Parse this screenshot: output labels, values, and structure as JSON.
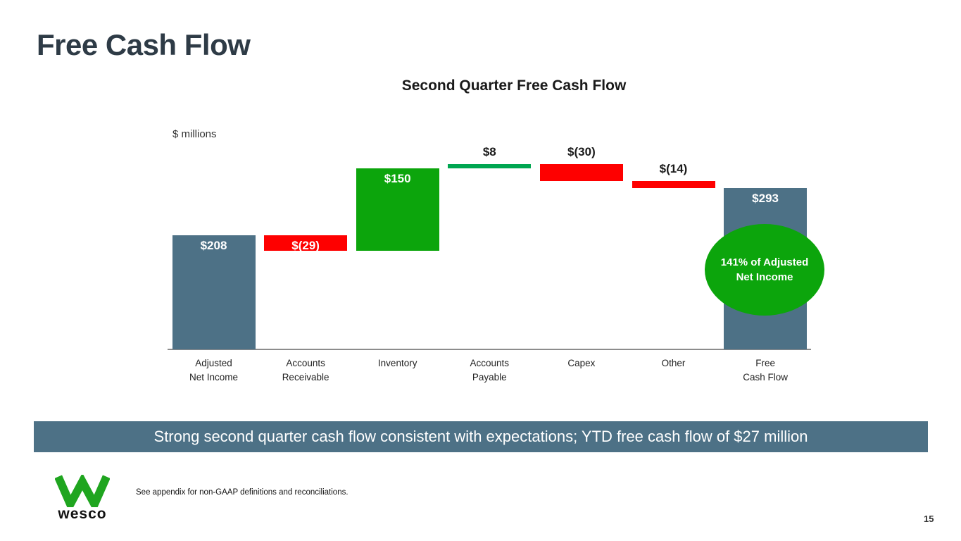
{
  "slide": {
    "title": "Free Cash Flow",
    "banner": "Strong second quarter cash flow consistent with expectations; YTD free cash flow of $27 million",
    "footnote": "See appendix for non-GAAP definitions and reconciliations.",
    "page_number": "15",
    "logo_text": "wesco",
    "colors": {
      "banner_bg": "#4d7186",
      "title_text": "#2e3b46"
    }
  },
  "chart_data": {
    "type": "bar",
    "subtype": "waterfall",
    "title": "Second Quarter Free Cash Flow",
    "units_label": "$ millions",
    "categories": [
      "Adjusted\nNet Income",
      "Accounts\nReceivable",
      "Inventory",
      "Accounts\nPayable",
      "Capex",
      "Other",
      "Free\nCash Flow"
    ],
    "values": [
      208,
      -29,
      150,
      8,
      -30,
      -14,
      293
    ],
    "labels": [
      "$208",
      "$(29)",
      "$150",
      "$8",
      "$(30)",
      "$(14)",
      "$293"
    ],
    "bar_kinds": [
      "total",
      "delta",
      "delta",
      "delta",
      "delta",
      "delta",
      "total"
    ],
    "label_positions": [
      "inside",
      "inside",
      "inside",
      "above",
      "above",
      "above",
      "inside"
    ],
    "bar_colors": [
      "#4d7186",
      "#fe0000",
      "#0ca50c",
      "#00a651",
      "#fe0000",
      "#fe0000",
      "#4d7186"
    ],
    "ylim": [
      0,
      360
    ],
    "grid": false,
    "legend": "none",
    "annotation": {
      "line1": "141% of Adjusted",
      "line2": "Net Income",
      "bg_color": "#0ca50c"
    }
  }
}
